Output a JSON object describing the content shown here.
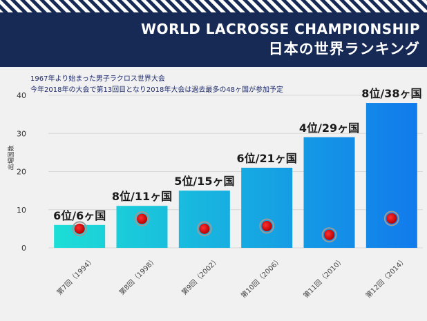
{
  "header": {
    "title_en": "WORLD LACROSSE CHAMPIONSHIP",
    "title_jp": "日本の世界ランキング"
  },
  "notes": [
    "1967年より始まった男子ラクロス世界大会",
    "今年2018年の大会で第13回目となり2018年大会は過去最多の48ヶ国が参加予定"
  ],
  "colors": {
    "header_bg": "#172a55",
    "bar_start": "#1de0d6",
    "bar_end": "#1179ec",
    "marker": "#e00000",
    "note_text": "#1d2a6b"
  },
  "chart_data": {
    "type": "bar",
    "categories": [
      "第7回（1994）",
      "第8回（1998）",
      "第9回（2002）",
      "第10回（2006）",
      "第11回（2010）",
      "第12回（2014）"
    ],
    "values": [
      6,
      11,
      15,
      21,
      29,
      38
    ],
    "data_labels": [
      "6位/6ヶ国",
      "8位/11ヶ国",
      "5位/15ヶ国",
      "6位/21ヶ国",
      "4位/29ヶ国",
      "8位/38ヶ国"
    ],
    "markers": [
      5,
      7.6,
      5,
      5.7,
      3.4,
      7.7
    ],
    "ylabel": "出場国数",
    "xlabel": "",
    "ylim": [
      0,
      40
    ],
    "yticks": [
      0,
      10,
      20,
      30,
      40
    ],
    "grid": true
  }
}
